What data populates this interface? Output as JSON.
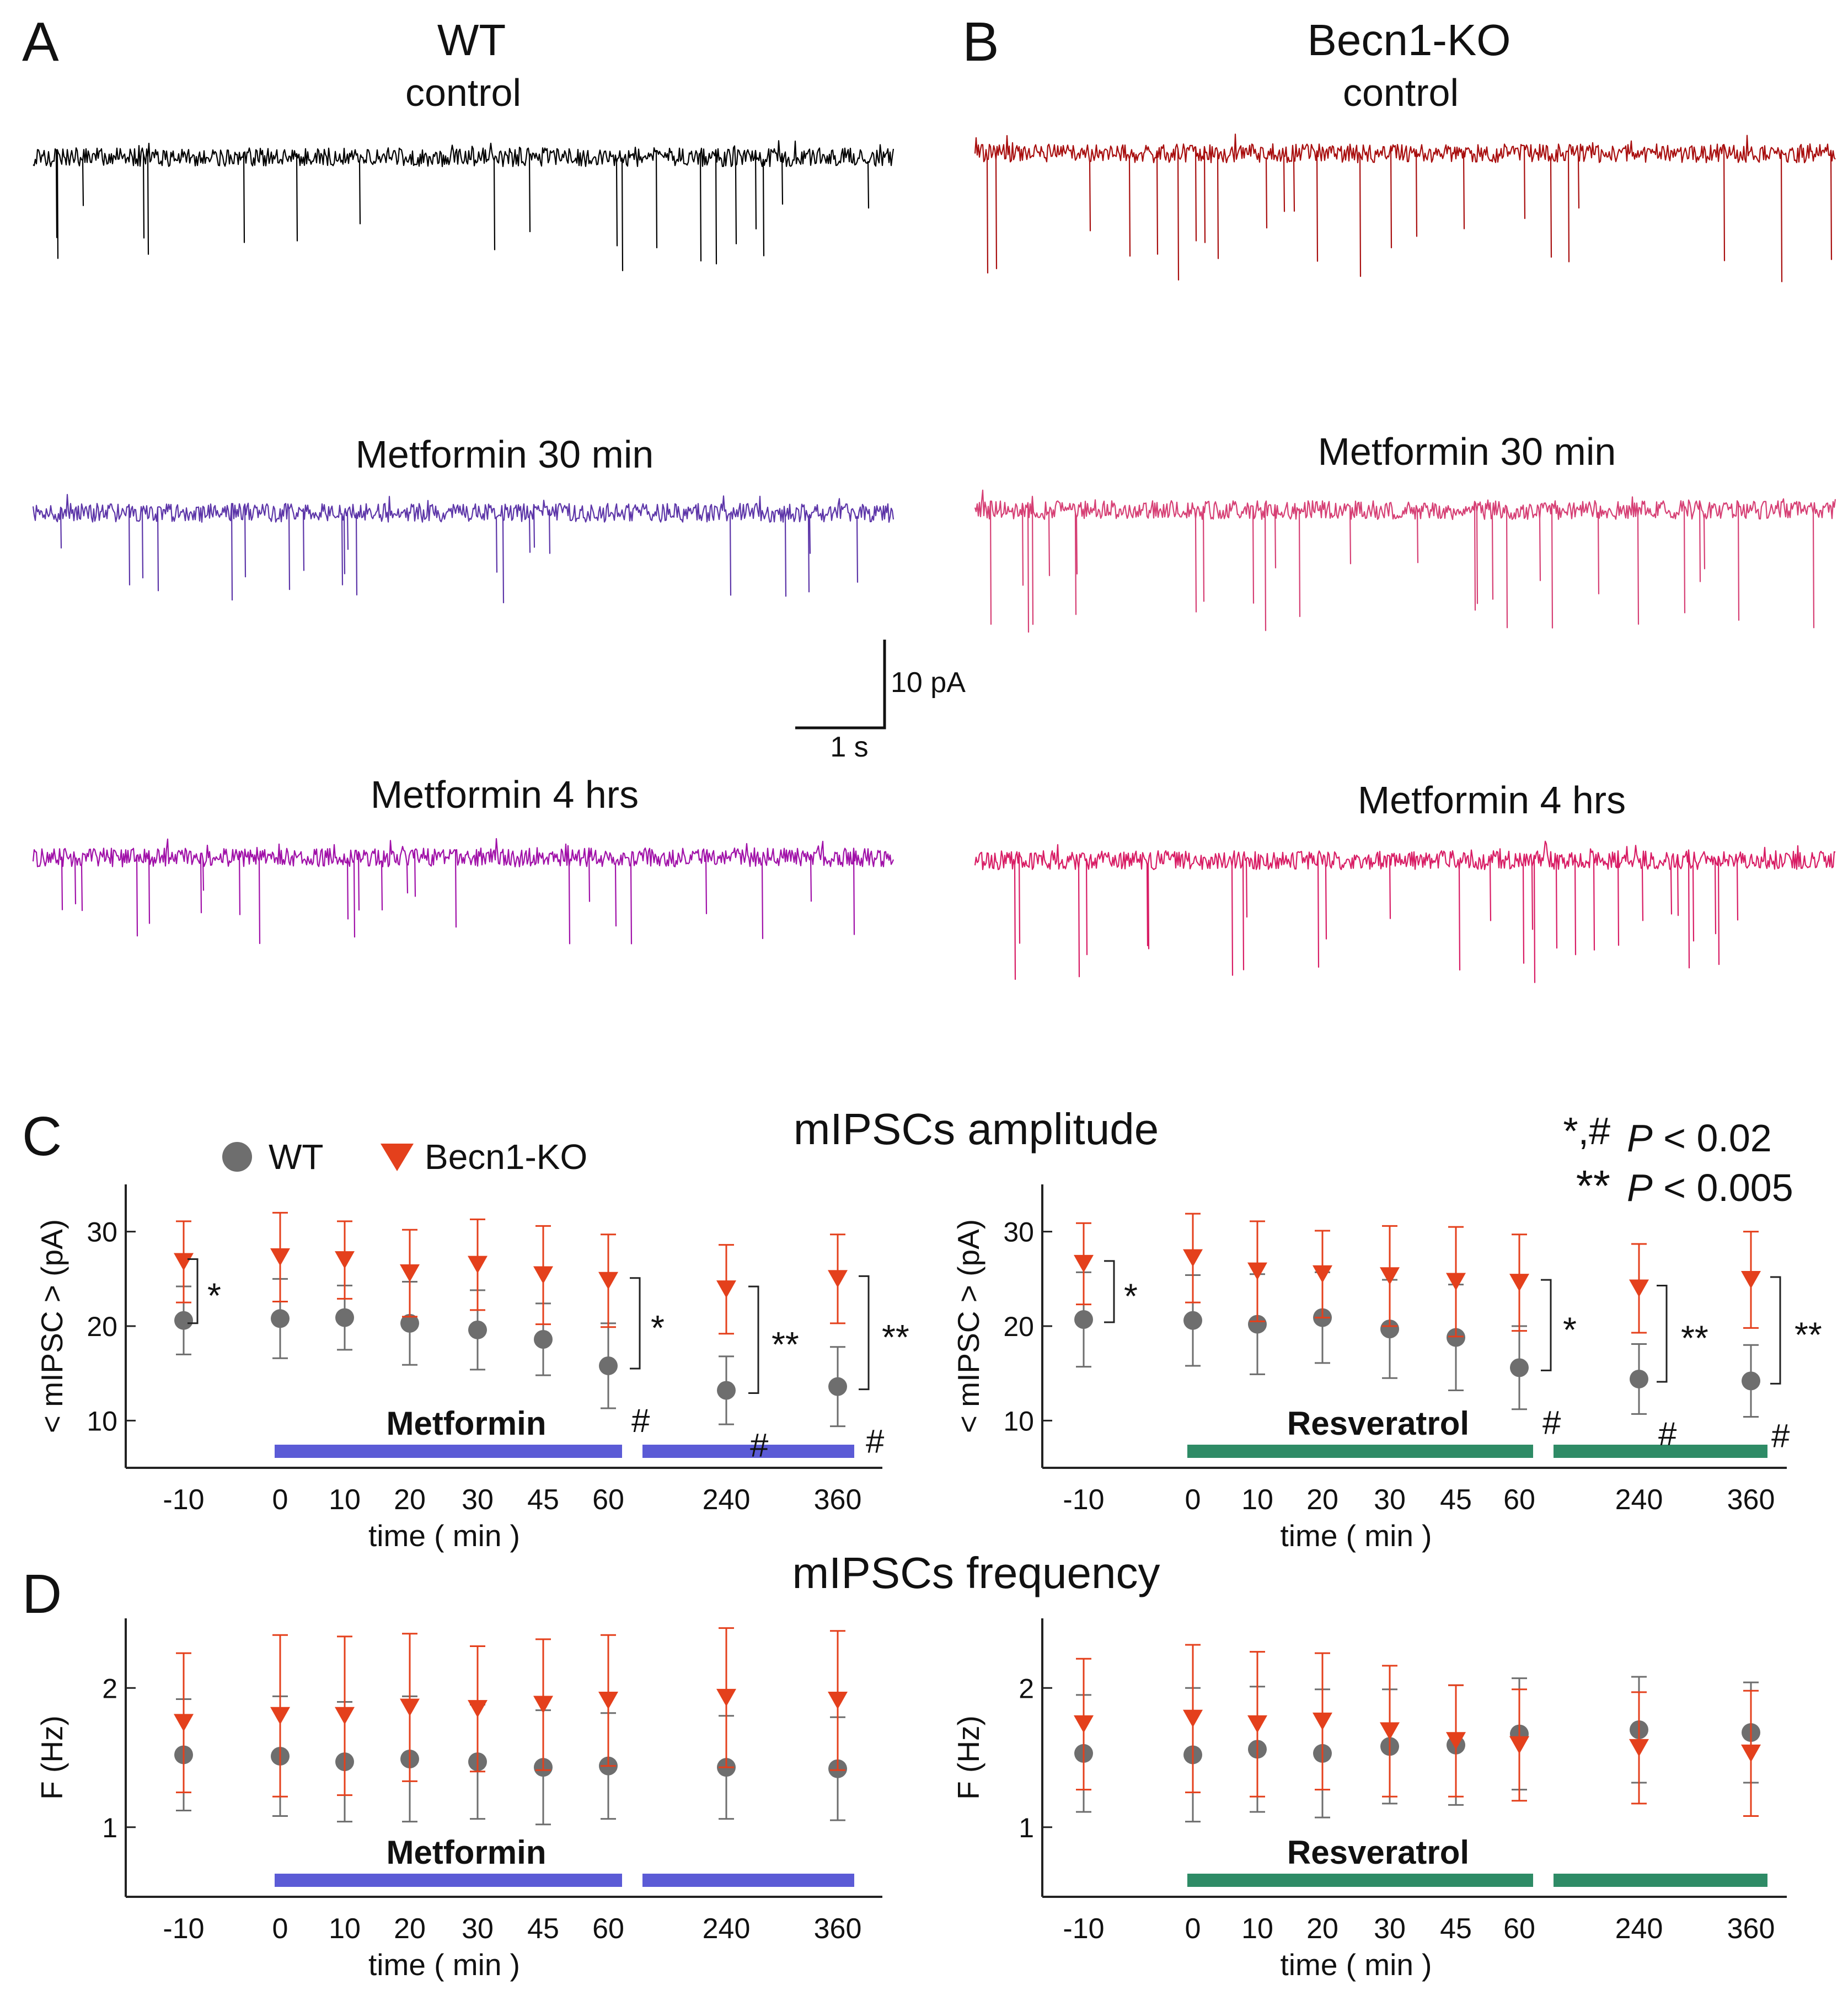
{
  "colors": {
    "wt": "#6e6e6e",
    "ko": "#e4401c",
    "metformin_bar": "#5b5bd6",
    "resveratrol_bar": "#2e8b66",
    "wt_control": "#000000",
    "wt_met30": "#5c35a8",
    "wt_met4": "#a010a8",
    "ko_control": "#a80e0e",
    "ko_met30": "#d63f74",
    "ko_met4": "#d81c64"
  },
  "panelA": {
    "letter": "A",
    "genotype": "WT",
    "traces": [
      {
        "label": "control"
      },
      {
        "label": "Metformin 30 min"
      },
      {
        "label": "Metformin 4 hrs"
      }
    ]
  },
  "panelB": {
    "letter": "B",
    "genotype": "Becn1-KO",
    "traces": [
      {
        "label": "control"
      },
      {
        "label": "Metformin 30 min"
      },
      {
        "label": "Metformin 4 hrs"
      }
    ]
  },
  "scalebar": {
    "y_label": "10 pA",
    "x_label": "1 s"
  },
  "panelC": {
    "letter": "C",
    "title": "mIPSCs amplitude"
  },
  "panelD": {
    "letter": "D",
    "title": "mIPSCs frequency"
  },
  "legend": {
    "wt": "WT",
    "ko": "Becn1-KO"
  },
  "significance": {
    "sym1": "*,#",
    "sym2": "**",
    "p_italic": "P",
    "val1": " < 0.02",
    "val2": " < 0.005"
  },
  "chart_data": [
    {
      "type": "scatter",
      "panel": "C-left",
      "title": "mIPSCs amplitude",
      "ylabel": "< mIPSC > (pA)",
      "xlabel": "time ( min )",
      "treatment": "Metformin",
      "categories": [
        "-10",
        "0",
        "10",
        "20",
        "30",
        "45",
        "60",
        "240",
        "360"
      ],
      "ylim": [
        5,
        35
      ],
      "yticks": [
        10,
        20,
        30
      ],
      "series": [
        {
          "name": "WT",
          "marker": "circle",
          "values": [
            20.6,
            20.8,
            20.9,
            20.3,
            19.6,
            18.6,
            15.8,
            13.2,
            13.6
          ],
          "err": [
            3.6,
            4.2,
            3.4,
            4.4,
            4.2,
            3.8,
            4.5,
            3.6,
            4.2
          ]
        },
        {
          "name": "Becn1-KO",
          "marker": "triangle",
          "values": [
            26.8,
            27.3,
            27.0,
            25.6,
            26.5,
            25.4,
            24.8,
            23.9,
            25.0
          ],
          "err": [
            4.3,
            4.7,
            4.1,
            4.6,
            4.8,
            5.2,
            4.9,
            4.7,
            4.7
          ]
        }
      ],
      "annotations": [
        {
          "category": "-10",
          "text": "*"
        },
        {
          "category": "60",
          "text": "*",
          "hash": "#"
        },
        {
          "category": "240",
          "text": "**",
          "hash": "#"
        },
        {
          "category": "360",
          "text": "**",
          "hash": "#"
        }
      ]
    },
    {
      "type": "scatter",
      "panel": "C-right",
      "ylabel": "< mIPSC > (pA)",
      "xlabel": "time ( min )",
      "treatment": "Resveratrol",
      "categories": [
        "-10",
        "0",
        "10",
        "20",
        "30",
        "45",
        "60",
        "240",
        "360"
      ],
      "ylim": [
        5,
        35
      ],
      "yticks": [
        10,
        20,
        30
      ],
      "series": [
        {
          "name": "WT",
          "marker": "circle",
          "values": [
            20.7,
            20.6,
            20.2,
            20.9,
            19.7,
            18.8,
            15.6,
            14.4,
            14.2
          ],
          "err": [
            5.0,
            4.8,
            5.3,
            4.8,
            5.2,
            5.6,
            4.4,
            3.7,
            3.8
          ]
        },
        {
          "name": "Becn1-KO",
          "marker": "triangle",
          "values": [
            26.6,
            27.2,
            25.8,
            25.5,
            25.3,
            24.7,
            24.6,
            24.0,
            24.9
          ],
          "err": [
            4.3,
            4.7,
            5.3,
            4.6,
            5.3,
            5.8,
            5.1,
            4.7,
            5.1
          ]
        }
      ],
      "annotations": [
        {
          "category": "-10",
          "text": "*"
        },
        {
          "category": "60",
          "text": "*",
          "hash": "#"
        },
        {
          "category": "240",
          "text": "**",
          "hash": "#"
        },
        {
          "category": "360",
          "text": "**",
          "hash": "#"
        }
      ]
    },
    {
      "type": "scatter",
      "panel": "D-left",
      "title": "mIPSCs frequency",
      "ylabel": "F (Hz)",
      "xlabel": "time ( min )",
      "treatment": "Metformin",
      "categories": [
        "-10",
        "0",
        "10",
        "20",
        "30",
        "45",
        "60",
        "240",
        "360"
      ],
      "ylim": [
        0.5,
        2.5
      ],
      "yticks": [
        1,
        2
      ],
      "series": [
        {
          "name": "WT",
          "marker": "circle",
          "values": [
            1.52,
            1.51,
            1.47,
            1.49,
            1.47,
            1.43,
            1.44,
            1.43,
            1.42
          ],
          "err": [
            0.4,
            0.43,
            0.43,
            0.45,
            0.41,
            0.41,
            0.38,
            0.37,
            0.37
          ]
        },
        {
          "name": "Becn1-KO",
          "marker": "triangle",
          "values": [
            1.75,
            1.8,
            1.8,
            1.86,
            1.85,
            1.88,
            1.91,
            1.93,
            1.91
          ],
          "err": [
            0.5,
            0.58,
            0.57,
            0.53,
            0.45,
            0.47,
            0.47,
            0.5,
            0.5
          ]
        }
      ]
    },
    {
      "type": "scatter",
      "panel": "D-right",
      "ylabel": "F (Hz)",
      "xlabel": "time ( min )",
      "treatment": "Resveratrol",
      "categories": [
        "-10",
        "0",
        "10",
        "20",
        "30",
        "45",
        "60",
        "240",
        "360"
      ],
      "ylim": [
        0.5,
        2.5
      ],
      "yticks": [
        1,
        2
      ],
      "series": [
        {
          "name": "WT",
          "marker": "circle",
          "values": [
            1.53,
            1.52,
            1.56,
            1.53,
            1.58,
            1.59,
            1.67,
            1.7,
            1.68
          ],
          "err": [
            0.42,
            0.48,
            0.45,
            0.46,
            0.41,
            0.43,
            0.4,
            0.38,
            0.36
          ]
        },
        {
          "name": "Becn1-KO",
          "marker": "triangle",
          "values": [
            1.74,
            1.78,
            1.74,
            1.76,
            1.69,
            1.62,
            1.59,
            1.57,
            1.53
          ],
          "err": [
            0.47,
            0.53,
            0.52,
            0.49,
            0.47,
            0.4,
            0.4,
            0.4,
            0.45
          ]
        }
      ]
    }
  ]
}
